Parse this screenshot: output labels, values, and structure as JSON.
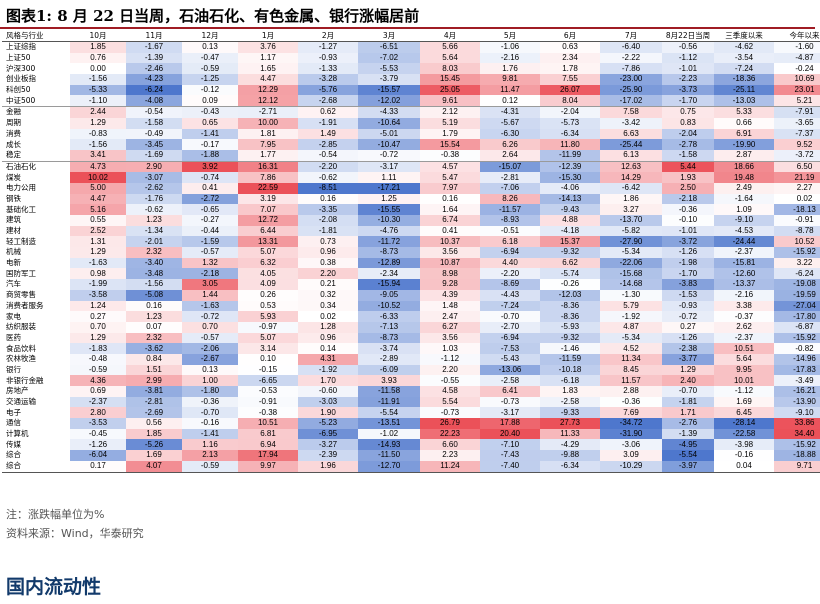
{
  "title": "图表1:  8 月 22 日当周，石油石化、有色金属、银行涨幅居前",
  "headers": [
    "风格与行业",
    "10月",
    "11月",
    "12月",
    "1月",
    "2月",
    "3月",
    "4月",
    "5月",
    "6月",
    "7月",
    "8月22日当周",
    "三季度以来",
    "今年以来"
  ],
  "colors": {
    "positive": "#e8323c",
    "negative": "#2f5fc4",
    "title_rule": "#a01c24",
    "section": "#123a6b"
  },
  "group_starts": [
    6,
    11
  ],
  "rows": [
    [
      "上证综指",
      "1.85",
      "-1.67",
      "0.13",
      "3.76",
      "-1.27",
      "-6.51",
      "5.66",
      "-1.06",
      "0.63",
      "-6.40",
      "-0.56",
      "-4.62",
      "-1.60"
    ],
    [
      "上证50",
      "0.76",
      "-1.39",
      "-0.47",
      "1.17",
      "-0.93",
      "-7.02",
      "5.64",
      "-2.16",
      "2.34",
      "-2.22",
      "-1.12",
      "-3.54",
      "-4.87"
    ],
    [
      "沪深300",
      "0.00",
      "-2.46",
      "-0.59",
      "1.65",
      "-1.33",
      "-5.53",
      "8.03",
      "1.76",
      "1.78",
      "-7.86",
      "-1.01",
      "-7.24",
      "-0.24"
    ],
    [
      "创业板指",
      "-1.56",
      "-4.23",
      "-1.25",
      "4.47",
      "-3.28",
      "-3.79",
      "15.45",
      "9.81",
      "7.55",
      "-23.00",
      "-2.23",
      "-18.36",
      "10.69"
    ],
    [
      "科创50",
      "-5.33",
      "-6.24",
      "-0.12",
      "12.29",
      "-5.76",
      "-15.57",
      "25.05",
      "11.47",
      "26.07",
      "-25.90",
      "-3.73",
      "-25.11",
      "23.01"
    ],
    [
      "中证500",
      "-1.10",
      "-4.08",
      "0.09",
      "12.12",
      "-2.68",
      "-12.02",
      "9.61",
      "0.12",
      "8.04",
      "-17.02",
      "-1.70",
      "-13.03",
      "5.21"
    ],
    [
      "金融",
      "2.44",
      "-0.54",
      "-0.43",
      "-2.71",
      "0.62",
      "-4.33",
      "2.12",
      "-4.31",
      "-2.04",
      "7.58",
      "0.75",
      "5.33",
      "-7.91"
    ],
    [
      "周期",
      "1.29",
      "-1.58",
      "0.65",
      "10.00",
      "-1.91",
      "-10.64",
      "5.19",
      "-5.67",
      "-5.73",
      "-3.42",
      "0.83",
      "0.66",
      "-3.65"
    ],
    [
      "消费",
      "-0.83",
      "-0.49",
      "-1.41",
      "1.81",
      "1.49",
      "-5.01",
      "1.79",
      "-6.30",
      "-6.34",
      "6.63",
      "-2.04",
      "6.91",
      "-7.37"
    ],
    [
      "成长",
      "-1.56",
      "-3.45",
      "-0.17",
      "7.95",
      "-2.85",
      "-10.47",
      "15.54",
      "6.26",
      "11.80",
      "-25.44",
      "-2.78",
      "-19.90",
      "9.52"
    ],
    [
      "稳定",
      "3.41",
      "-1.69",
      "-1.88",
      "1.77",
      "-0.54",
      "-0.72",
      "-0.38",
      "2.64",
      "-11.99",
      "6.13",
      "-1.58",
      "2.87",
      "-3.72"
    ],
    [
      "石油石化",
      "4.73",
      "2.90",
      "3.92",
      "16.31",
      "-2.20",
      "-3.17",
      "4.57",
      "-15.07",
      "-12.39",
      "12.63",
      "5.44",
      "18.66",
      "6.50"
    ],
    [
      "煤炭",
      "10.02",
      "-3.07",
      "-0.74",
      "7.86",
      "-0.62",
      "1.11",
      "5.47",
      "-2.81",
      "-15.30",
      "14.29",
      "1.93",
      "19.48",
      "21.19"
    ],
    [
      "电力公用",
      "5.00",
      "-2.62",
      "0.41",
      "22.59",
      "-8.51",
      "-17.21",
      "7.97",
      "-7.06",
      "-4.06",
      "-6.42",
      "2.50",
      "2.49",
      "2.27"
    ],
    [
      "钢铁",
      "4.47",
      "-1.76",
      "-2.72",
      "3.19",
      "0.16",
      "1.25",
      "0.16",
      "8.26",
      "-14.13",
      "1.86",
      "-2.18",
      "-1.64",
      "0.02"
    ],
    [
      "基础化工",
      "5.16",
      "-0.62",
      "-0.65",
      "7.07",
      "-3.35",
      "-15.55",
      "1.64",
      "-11.57",
      "-9.43",
      "3.27",
      "-0.36",
      "1.09",
      "-18.13"
    ],
    [
      "建筑",
      "0.55",
      "1.23",
      "-0.27",
      "12.72",
      "-2.08",
      "-10.30",
      "6.74",
      "-8.93",
      "4.88",
      "-13.70",
      "-0.10",
      "-9.10",
      "-0.91"
    ],
    [
      "建材",
      "2.52",
      "-1.34",
      "-0.44",
      "6.44",
      "-1.81",
      "-4.76",
      "0.41",
      "-0.51",
      "-4.18",
      "-5.82",
      "-1.01",
      "-4.53",
      "-8.78"
    ],
    [
      "轻工制造",
      "1.31",
      "-2.01",
      "-1.59",
      "13.31",
      "0.73",
      "-11.72",
      "10.37",
      "6.18",
      "15.37",
      "-27.90",
      "-3.72",
      "-24.44",
      "10.52"
    ],
    [
      "机械",
      "1.29",
      "2.32",
      "-0.57",
      "5.07",
      "0.96",
      "-8.73",
      "3.56",
      "-6.94",
      "-9.32",
      "-5.34",
      "-1.26",
      "-2.37",
      "-15.92"
    ],
    [
      "电新",
      "-1.63",
      "-3.40",
      "1.32",
      "6.32",
      "0.38",
      "-12.89",
      "10.87",
      "4.40",
      "6.62",
      "-22.06",
      "-1.98",
      "-15.81",
      "3.22"
    ],
    [
      "国防军工",
      "0.98",
      "-3.48",
      "-2.18",
      "4.05",
      "2.20",
      "-2.34",
      "8.98",
      "-2.20",
      "-5.74",
      "-15.68",
      "-1.70",
      "-12.60",
      "-6.24"
    ],
    [
      "汽车",
      "-1.99",
      "-1.56",
      "3.05",
      "4.09",
      "0.21",
      "-15.94",
      "9.28",
      "-8.69",
      "-0.26",
      "-14.68",
      "-3.83",
      "-13.37",
      "-19.08"
    ],
    [
      "商贸零售",
      "-3.58",
      "-5.08",
      "1.44",
      "0.26",
      "0.32",
      "-9.05",
      "4.39",
      "-4.43",
      "-12.03",
      "-1.30",
      "-1.53",
      "-2.16",
      "-19.59"
    ],
    [
      "消费者服务",
      "1.24",
      "0.16",
      "-1.63",
      "0.53",
      "0.34",
      "-10.52",
      "1.48",
      "-7.24",
      "-8.36",
      "5.79",
      "-0.93",
      "3.38",
      "-27.04"
    ],
    [
      "家电",
      "0.27",
      "1.23",
      "-0.72",
      "5.93",
      "0.02",
      "-6.33",
      "2.47",
      "-0.70",
      "-8.36",
      "-1.92",
      "-0.72",
      "-0.37",
      "-17.80"
    ],
    [
      "纺织服装",
      "0.70",
      "0.07",
      "0.70",
      "-0.97",
      "1.28",
      "-7.13",
      "6.27",
      "-2.70",
      "-5.93",
      "4.87",
      "0.27",
      "2.62",
      "-6.87"
    ],
    [
      "医药",
      "1.29",
      "2.32",
      "-0.57",
      "5.07",
      "0.96",
      "-8.73",
      "3.56",
      "-6.94",
      "-9.32",
      "-5.34",
      "-1.26",
      "-2.37",
      "-15.92"
    ],
    [
      "食品饮料",
      "-1.83",
      "-3.62",
      "-2.06",
      "3.14",
      "0.14",
      "-3.74",
      "1.03",
      "-7.53",
      "-1.46",
      "4.52",
      "-2.38",
      "10.51",
      "-0.82"
    ],
    [
      "农林牧渔",
      "-0.48",
      "0.84",
      "-2.67",
      "0.10",
      "4.31",
      "-2.89",
      "-1.12",
      "-5.43",
      "-11.59",
      "11.34",
      "-3.77",
      "5.64",
      "-14.96"
    ],
    [
      "银行",
      "-0.59",
      "1.51",
      "0.13",
      "-0.15",
      "-1.92",
      "-6.09",
      "2.20",
      "-13.06",
      "-10.18",
      "8.45",
      "1.29",
      "9.95",
      "-17.83"
    ],
    [
      "非银行金融",
      "4.36",
      "2.99",
      "1.00",
      "-6.65",
      "1.70",
      "3.93",
      "-0.55",
      "-2.58",
      "-6.18",
      "11.57",
      "2.40",
      "10.01",
      "-3.49"
    ],
    [
      "房地产",
      "0.69",
      "-3.81",
      "-1.80",
      "-0.53",
      "-0.60",
      "-11.58",
      "4.58",
      "6.41",
      "1.83",
      "2.88",
      "-0.70",
      "-1.12",
      "-16.21"
    ],
    [
      "交通运输",
      "-2.37",
      "-2.81",
      "-0.36",
      "-0.91",
      "-3.03",
      "-11.91",
      "5.54",
      "-0.73",
      "-2.58",
      "-0.36",
      "-1.81",
      "1.69",
      "-13.90"
    ],
    [
      "电子",
      "2.80",
      "-2.69",
      "-0.70",
      "-0.38",
      "1.90",
      "-5.54",
      "-0.73",
      "-3.17",
      "-9.33",
      "7.69",
      "1.71",
      "6.45",
      "-9.10"
    ],
    [
      "通信",
      "-3.53",
      "0.56",
      "-0.16",
      "10.51",
      "-5.23",
      "-13.51",
      "26.79",
      "17.88",
      "27.73",
      "-34.72",
      "-2.76",
      "-28.14",
      "33.86"
    ],
    [
      "计算机",
      "-0.45",
      "1.85",
      "-1.41",
      "6.81",
      "-6.95",
      "-1.02",
      "22.23",
      "20.40",
      "11.33",
      "-31.90",
      "-1.39",
      "-22.58",
      "34.40"
    ],
    [
      "传媒",
      "-1.26",
      "-5.26",
      "1.16",
      "6.94",
      "-3.27",
      "-14.93",
      "6.60",
      "-7.10",
      "-4.29",
      "-3.06",
      "-4.95",
      "-3.98",
      "-15.92"
    ],
    [
      "综合",
      "-6.04",
      "1.69",
      "2.13",
      "17.94",
      "-2.39",
      "-11.50",
      "2.23",
      "-7.43",
      "-9.88",
      "3.09",
      "-5.54",
      "-0.16",
      "-18.88"
    ],
    [
      "综合_",
      "0.17",
      "4.07",
      "-0.59",
      "9.97",
      "1.96",
      "-12.70",
      "11.24",
      "-7.40",
      "-6.34",
      "-10.29",
      "-3.97",
      "0.04",
      "9.71"
    ]
  ],
  "note": "注：涨跌幅单位为%",
  "source": "资料来源：Wind，华泰研究",
  "section_title": "国内流动性"
}
